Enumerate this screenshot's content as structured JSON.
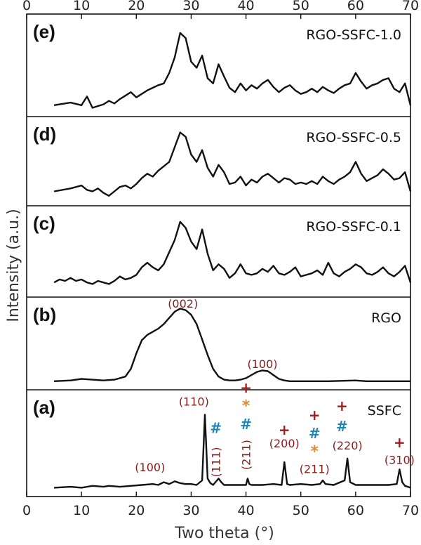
{
  "chart_data": {
    "type": "line",
    "xlabel": "Two theta (°)",
    "ylabel": "Intensity (a.u.)",
    "xlim": [
      0,
      70
    ],
    "xticks": [
      0,
      10,
      20,
      30,
      40,
      50,
      60,
      70
    ],
    "ticks_top_and_bottom": true,
    "grid": false,
    "colors": {
      "line": "#111111",
      "plus": "#A11B1B",
      "hash": "#1F86B8",
      "star": "#D98A3A",
      "label": "#8B1A1A"
    },
    "panels": [
      {
        "letter": "(e)",
        "name": "RGO-SSFC-1.0",
        "x": [
          5,
          8,
          10,
          11,
          12,
          13,
          14,
          15,
          16,
          17,
          18,
          19,
          20,
          21,
          22,
          23,
          24,
          25,
          26,
          27,
          28,
          29,
          30,
          31,
          32,
          33,
          34,
          35,
          36,
          37,
          38,
          39,
          40,
          41,
          42,
          43,
          44,
          45,
          46,
          47,
          48,
          49,
          50,
          51,
          52,
          53,
          54,
          55,
          56,
          57,
          58,
          59,
          60,
          61,
          62,
          63,
          64,
          65,
          66,
          67,
          68,
          69,
          70
        ],
        "y": [
          0.05,
          0.08,
          0.05,
          0.15,
          0.02,
          0.04,
          0.06,
          0.1,
          0.07,
          0.12,
          0.16,
          0.2,
          0.14,
          0.18,
          0.22,
          0.25,
          0.28,
          0.3,
          0.42,
          0.6,
          0.88,
          0.82,
          0.55,
          0.48,
          0.62,
          0.36,
          0.3,
          0.52,
          0.38,
          0.25,
          0.2,
          0.3,
          0.22,
          0.28,
          0.24,
          0.3,
          0.34,
          0.26,
          0.2,
          0.25,
          0.28,
          0.22,
          0.18,
          0.2,
          0.24,
          0.2,
          0.26,
          0.22,
          0.19,
          0.24,
          0.28,
          0.3,
          0.42,
          0.32,
          0.24,
          0.28,
          0.3,
          0.34,
          0.36,
          0.24,
          0.2,
          0.3,
          0.05
        ]
      },
      {
        "letter": "(d)",
        "name": "RGO-SSFC-0.5",
        "x": [
          5,
          8,
          10,
          11,
          12,
          13,
          14,
          15,
          16,
          17,
          18,
          19,
          20,
          21,
          22,
          23,
          24,
          25,
          26,
          27,
          28,
          29,
          30,
          31,
          32,
          33,
          34,
          35,
          36,
          37,
          38,
          39,
          40,
          41,
          42,
          43,
          44,
          45,
          46,
          47,
          48,
          49,
          50,
          51,
          52,
          53,
          54,
          55,
          56,
          57,
          58,
          59,
          60,
          61,
          62,
          63,
          64,
          65,
          66,
          67,
          68,
          69,
          70
        ],
        "y": [
          0.1,
          0.14,
          0.18,
          0.12,
          0.1,
          0.14,
          0.08,
          0.04,
          0.1,
          0.16,
          0.18,
          0.14,
          0.2,
          0.28,
          0.34,
          0.3,
          0.38,
          0.44,
          0.5,
          0.7,
          0.9,
          0.84,
          0.6,
          0.5,
          0.66,
          0.42,
          0.3,
          0.46,
          0.36,
          0.2,
          0.22,
          0.3,
          0.18,
          0.26,
          0.22,
          0.3,
          0.34,
          0.28,
          0.22,
          0.28,
          0.26,
          0.2,
          0.22,
          0.2,
          0.24,
          0.2,
          0.3,
          0.24,
          0.2,
          0.26,
          0.3,
          0.36,
          0.5,
          0.34,
          0.24,
          0.28,
          0.32,
          0.4,
          0.34,
          0.26,
          0.28,
          0.36,
          0.1
        ]
      },
      {
        "letter": "(c)",
        "name": "RGO-SSFC-0.1",
        "x": [
          5,
          6,
          7,
          8,
          9,
          10,
          11,
          12,
          13,
          14,
          15,
          16,
          17,
          18,
          19,
          20,
          21,
          22,
          23,
          24,
          25,
          26,
          27,
          28,
          29,
          30,
          31,
          32,
          33,
          34,
          35,
          36,
          37,
          38,
          39,
          40,
          41,
          42,
          43,
          44,
          45,
          46,
          47,
          48,
          49,
          50,
          51,
          52,
          53,
          54,
          55,
          56,
          57,
          58,
          59,
          60,
          61,
          62,
          63,
          64,
          65,
          66,
          67,
          68,
          69,
          70
        ],
        "y": [
          0.1,
          0.14,
          0.12,
          0.16,
          0.12,
          0.14,
          0.1,
          0.08,
          0.12,
          0.1,
          0.08,
          0.12,
          0.18,
          0.14,
          0.16,
          0.2,
          0.3,
          0.36,
          0.3,
          0.26,
          0.34,
          0.5,
          0.66,
          0.9,
          0.82,
          0.64,
          0.54,
          0.8,
          0.48,
          0.26,
          0.34,
          0.28,
          0.16,
          0.22,
          0.34,
          0.22,
          0.2,
          0.22,
          0.28,
          0.24,
          0.32,
          0.22,
          0.2,
          0.24,
          0.3,
          0.18,
          0.2,
          0.22,
          0.26,
          0.2,
          0.36,
          0.22,
          0.18,
          0.24,
          0.28,
          0.34,
          0.3,
          0.22,
          0.2,
          0.24,
          0.3,
          0.22,
          0.18,
          0.24,
          0.32,
          0.1
        ]
      },
      {
        "letter": "(b)",
        "name": "RGO",
        "x": [
          5,
          8,
          10,
          12,
          14,
          16,
          18,
          19,
          20,
          21,
          22,
          23,
          24,
          25,
          26,
          27,
          28,
          29,
          30,
          31,
          32,
          33,
          34,
          35,
          36,
          37,
          38,
          39,
          40,
          41,
          42,
          43,
          44,
          45,
          46,
          47,
          48,
          50,
          55,
          60,
          62,
          65,
          70
        ],
        "y": [
          0.02,
          0.03,
          0.05,
          0.04,
          0.03,
          0.04,
          0.08,
          0.18,
          0.38,
          0.55,
          0.62,
          0.66,
          0.7,
          0.76,
          0.84,
          0.92,
          0.96,
          0.94,
          0.88,
          0.76,
          0.56,
          0.36,
          0.18,
          0.08,
          0.04,
          0.03,
          0.03,
          0.04,
          0.06,
          0.1,
          0.14,
          0.16,
          0.15,
          0.1,
          0.05,
          0.03,
          0.02,
          0.02,
          0.02,
          0.03,
          0.02,
          0.02,
          0.02
        ]
      },
      {
        "letter": "(a)",
        "name": "SSFC",
        "x": [
          5,
          8,
          10,
          12,
          14,
          15,
          17,
          19,
          21,
          23,
          24,
          25,
          26,
          27,
          28,
          29,
          30,
          31,
          32,
          32.5,
          33,
          33.5,
          34,
          35,
          35.5,
          36,
          37,
          39,
          40,
          40.3,
          40.6,
          41,
          43,
          45,
          46.5,
          47,
          47.5,
          48,
          50,
          52,
          53.5,
          54,
          54.5,
          56,
          58,
          58.5,
          59,
          60,
          62,
          64,
          66,
          67.5,
          68,
          68.5,
          69,
          70
        ],
        "y": [
          0.02,
          0.03,
          0.02,
          0.04,
          0.03,
          0.04,
          0.03,
          0.04,
          0.05,
          0.06,
          0.05,
          0.08,
          0.06,
          0.09,
          0.07,
          0.06,
          0.06,
          0.05,
          0.1,
          0.82,
          0.12,
          0.07,
          0.05,
          0.12,
          0.08,
          0.05,
          0.05,
          0.05,
          0.05,
          0.12,
          0.06,
          0.05,
          0.05,
          0.06,
          0.05,
          0.3,
          0.06,
          0.05,
          0.06,
          0.05,
          0.06,
          0.1,
          0.06,
          0.05,
          0.1,
          0.34,
          0.08,
          0.05,
          0.05,
          0.05,
          0.05,
          0.06,
          0.22,
          0.08,
          0.04,
          0.02
        ]
      }
    ]
  },
  "annotations": {
    "b": [
      {
        "text": "(002)",
        "x": 28.5
      },
      {
        "text": "(100)",
        "x": 43
      }
    ],
    "a_labels": [
      {
        "text": "(100)",
        "x": 22.5,
        "rot": 0
      },
      {
        "text": "(110)",
        "x": 30.5,
        "rot": 0
      },
      {
        "text": "(111)",
        "x": 34.5,
        "rot": -90
      },
      {
        "text": "(211)",
        "x": 40,
        "rot": -90
      },
      {
        "text": "(200)",
        "x": 47,
        "rot": 0
      },
      {
        "text": "(211)",
        "x": 52.5,
        "rot": 0
      },
      {
        "text": "(220)",
        "x": 58.5,
        "rot": 0
      },
      {
        "text": "(310)",
        "x": 68,
        "rot": 0
      }
    ],
    "a_markers": [
      {
        "sym": "#",
        "kind": "hash",
        "x": 34.5,
        "lvl": 0.62
      },
      {
        "sym": "+",
        "kind": "plus",
        "x": 40,
        "lvl": 1.06
      },
      {
        "sym": "*",
        "kind": "star",
        "x": 40,
        "lvl": 0.86
      },
      {
        "sym": "#",
        "kind": "hash",
        "x": 40,
        "lvl": 0.66
      },
      {
        "sym": "+",
        "kind": "plus",
        "x": 47,
        "lvl": 0.6
      },
      {
        "sym": "+",
        "kind": "plus",
        "x": 52.5,
        "lvl": 0.76
      },
      {
        "sym": "#",
        "kind": "hash",
        "x": 52.5,
        "lvl": 0.56
      },
      {
        "sym": "*",
        "kind": "star",
        "x": 52.5,
        "lvl": 0.36
      },
      {
        "sym": "+",
        "kind": "plus",
        "x": 57.5,
        "lvl": 0.86
      },
      {
        "sym": "#",
        "kind": "hash",
        "x": 57.5,
        "lvl": 0.64
      },
      {
        "sym": "+",
        "kind": "plus",
        "x": 68,
        "lvl": 0.46
      }
    ]
  }
}
